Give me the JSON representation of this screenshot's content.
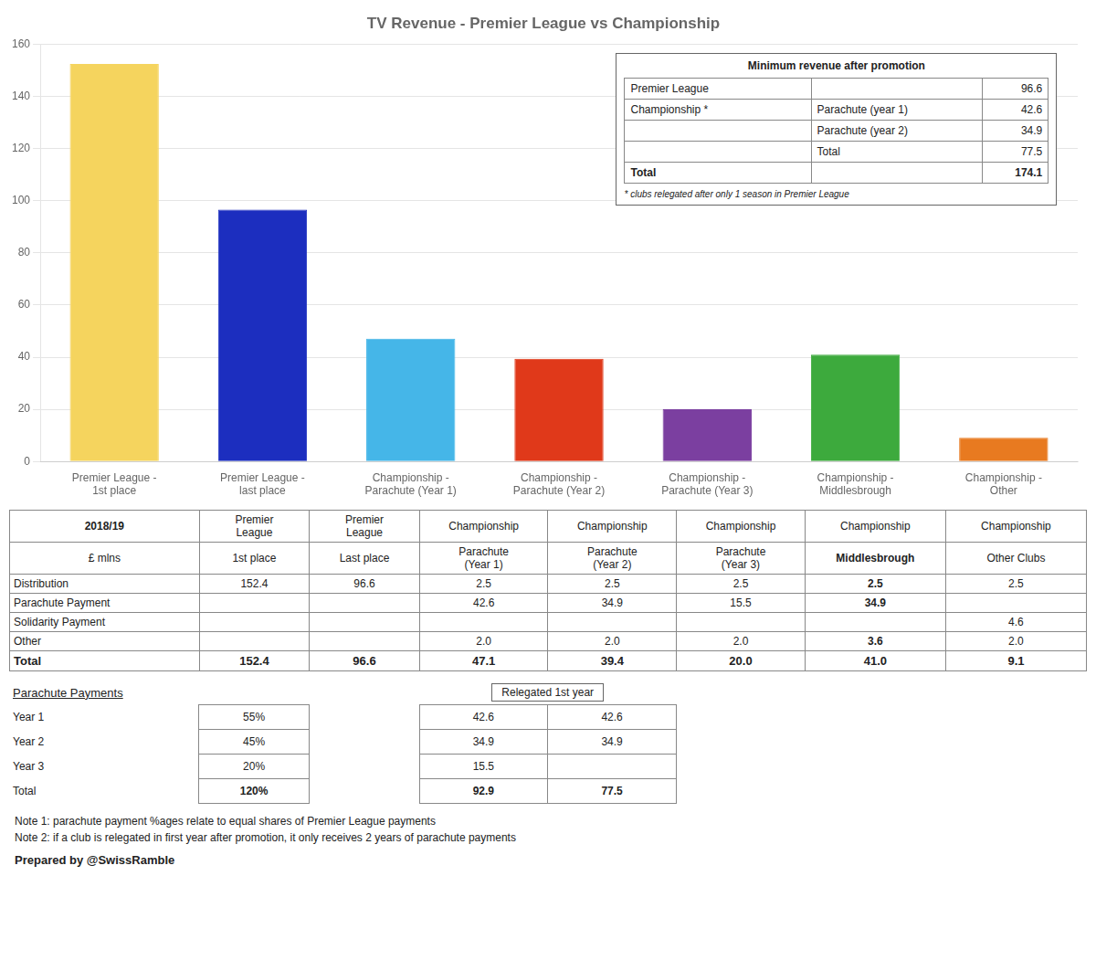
{
  "chart_data": {
    "type": "bar",
    "title": "TV Revenue - Premier League vs Championship",
    "categories": [
      "Premier League -\n1st place",
      "Premier League -\nlast place",
      "Championship -\nParachute (Year 1)",
      "Championship -\nParachute (Year 2)",
      "Championship -\nParachute (Year 3)",
      "Championship -\nMiddlesbrough",
      "Championship -\nOther"
    ],
    "values": [
      152.4,
      96.6,
      47.1,
      39.4,
      20.0,
      41.0,
      9.1
    ],
    "colors": [
      "#F5D45E",
      "#1C2EBF",
      "#45B6E8",
      "#E0391A",
      "#7B3FA0",
      "#3DAA3D",
      "#E87A20"
    ],
    "ylim": [
      0,
      160
    ],
    "yticks": [
      0,
      20,
      40,
      60,
      80,
      100,
      120,
      140,
      160
    ],
    "grid": true,
    "annotations": [
      "Minimum revenue after promotion",
      [
        [
          "Premier League",
          null,
          "96.6"
        ],
        [
          "Championship *",
          "Parachute (year 1)",
          "42.6"
        ],
        [
          null,
          "Parachute (year 2)",
          "34.9"
        ],
        [
          null,
          "Total",
          "77.5"
        ],
        [
          "Total",
          null,
          "174.1"
        ]
      ],
      "* clubs relegated after only 1 season in Premier League",
      [
        [
          "2018/19",
          "Premier\nLeague",
          "Premier\nLeague",
          "Championship",
          "Championship",
          "Championship",
          "Championship",
          "Championship"
        ],
        [
          "£ mlns",
          "1st place",
          "Last place",
          "Parachute\n(Year 1)",
          "Parachute\n(Year 2)",
          "Parachute\n(Year 3)",
          "Middlesbrough",
          "Other Clubs"
        ],
        [
          "Distribution",
          "152.4",
          "96.6",
          "2.5",
          "2.5",
          "2.5",
          "2.5",
          "2.5"
        ],
        [
          "Parachute Payment",
          null,
          null,
          "42.6",
          "34.9",
          "15.5",
          "34.9",
          null
        ],
        [
          "Solidarity Payment",
          null,
          null,
          null,
          null,
          null,
          null,
          "4.6"
        ],
        [
          "Other",
          null,
          null,
          "2.0",
          "2.0",
          "2.0",
          "3.6",
          "2.0"
        ],
        [
          "Total",
          "152.4",
          "96.6",
          "47.1",
          "39.4",
          "20.0",
          "41.0",
          "9.1"
        ]
      ],
      "Parachute Payments",
      "Relegated 1st year",
      [
        [
          "Year 1",
          "55%",
          "42.6",
          "42.6"
        ],
        [
          "Year 2",
          "45%",
          "34.9",
          "34.9"
        ],
        [
          "Year 3",
          "20%",
          "15.5",
          null
        ],
        [
          "Total",
          "120%",
          "92.9",
          "77.5"
        ]
      ],
      "Note 1: parachute payment %ages relate to equal shares of Premier League payments",
      "Note 2: if a club is relegated in first year after promotion, it only receives 2 years of parachute payments",
      "Prepared by @SwissRamble"
    ]
  }
}
